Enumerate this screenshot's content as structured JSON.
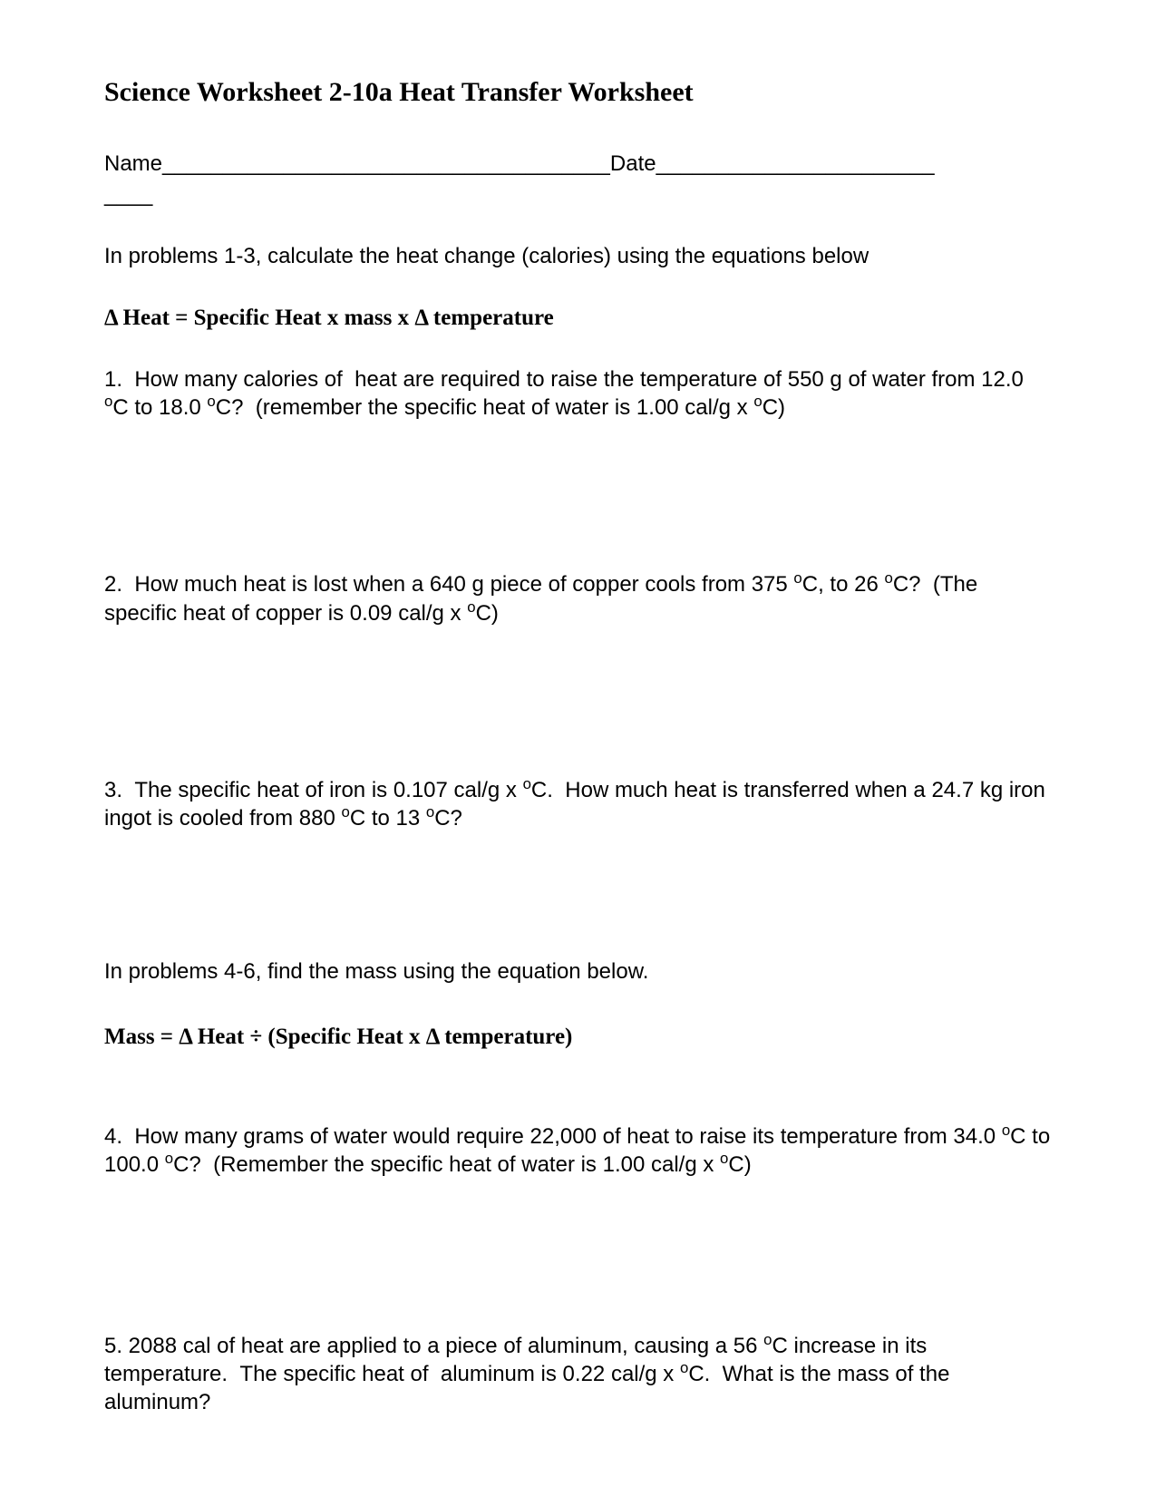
{
  "title": "Science Worksheet 2-10a Heat Transfer Worksheet",
  "name_date_line": "Name_____________________________________Date_______________________",
  "short_line": "____",
  "section1": {
    "instruction": "In problems 1-3, calculate the heat change (calories) using the equations below",
    "equation": "Δ Heat =  Specific Heat  x  mass  x  Δ temperature"
  },
  "problems": {
    "p1": "1.  How many calories of  heat are required to raise the temperature of 550 g of water from 12.0 °C to 18.0 °C?  (remember the specific heat of water is 1.00 cal/g x °C)",
    "p2": "2.  How much heat is lost when a 640 g piece of copper cools from 375 °C, to 26 °C?  (The specific heat of copper is 0.09 cal/g x °C)",
    "p3": "3.  The specific heat of iron is 0.107 cal/g x °C.  How much heat is transferred when a 24.7 kg iron ingot is cooled from 880 °C to 13 °C?",
    "p4": "4.  How many grams of water would require 22,000 of heat to raise its temperature from 34.0 °C to 100.0 °C?  (Remember the specific heat of water is 1.00 cal/g x °C)",
    "p5": "5. 2088 cal of heat are applied to a piece of aluminum, causing a 56 °C increase in its temperature.  The specific heat of  aluminum is 0.22 cal/g x °C.  What is the mass of the aluminum?"
  },
  "section2": {
    "instruction": "In problems 4-6, find the mass using the equation below.",
    "equation": "Mass = Δ Heat  ÷  (Specific Heat  x  Δ temperature)"
  }
}
